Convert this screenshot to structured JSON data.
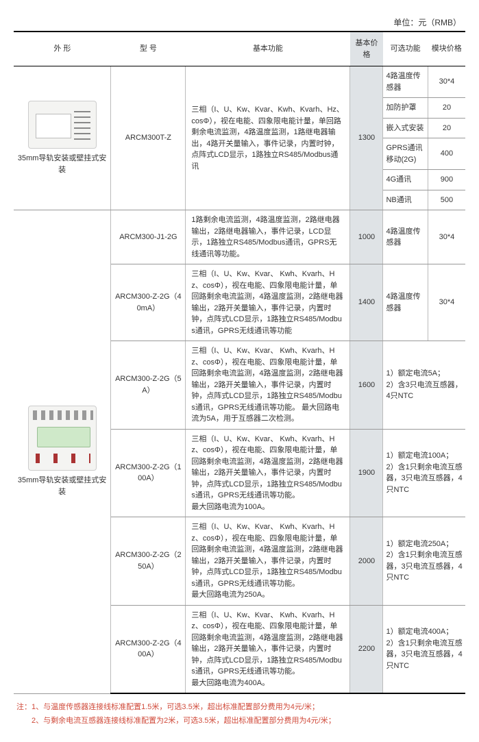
{
  "unit_label": "单位：元（RMB）",
  "headers": {
    "shape": "外  形",
    "model": "型  号",
    "func": "基本功能",
    "price": "基本价格",
    "opt": "可选功能",
    "modprice": "模块价格"
  },
  "group1": {
    "shape_caption": "35mm导轨安装或壁挂式安装",
    "model": "ARCM300T-Z",
    "func": "三相（I、U、Kw、Kvar、Kwh、Kvarh、Hz、cosΦ），视在电能、四象限电能计量，单回路剩余电流监测，4路温度监测，1路继电器输出，4路开关量输入，事件记录，内置时钟，点阵式LCD显示，1路独立RS485/Modbus通讯",
    "price": "1300",
    "options": [
      {
        "name": "4路温度传感器",
        "price": "30*4"
      },
      {
        "name": "加防护罩",
        "price": "20"
      },
      {
        "name": "嵌入式安装",
        "price": "20"
      },
      {
        "name": "GPRS通讯移动(2G)",
        "price": "400"
      },
      {
        "name": "4G通讯",
        "price": "900"
      },
      {
        "name": "NB通讯",
        "price": "500"
      }
    ]
  },
  "group2": {
    "shape_caption": "35mm导轨安装或壁挂式安装",
    "rows": [
      {
        "model": "ARCM300-J1-2G",
        "func": "1路剩余电流监测，4路温度监测，2路继电器输出，2路继电器输入，事件记录，LCD显示，1路独立RS485/Modbus通讯，GPRS无线通讯等功能。",
        "price": "1000",
        "opt": "4路温度传感器",
        "modprice": "30*4"
      },
      {
        "model": "ARCM300-Z-2G（40mA）",
        "func": "三相（I、U、Kw、Kvar、    Kwh、Kvarh、Hz、cosΦ），视在电能、四象限电能计量，单回路剩余电流监测，4路温度监测，2路继电器输出，2路开关量输入，事件记录，内置时钟，点阵式LCD显示，1路独立RS485/Modbus通讯，GPRS无线通讯等功能",
        "price": "1400",
        "opt": "4路温度传感器",
        "modprice": "30*4"
      },
      {
        "model": "ARCM300-Z-2G（5A）",
        "func": "三相（I、U、Kw、Kvar、    Kwh、Kvarh、Hz、cosΦ），视在电能、四象限电能计量，单回路剩余电流监测，4路温度监测，2路继电器输出，2路开关量输入，事件记录，内置时钟，点阵式LCD显示，1路独立RS485/Modbus通讯，GPRS无线通讯等功能。\n最大回路电流为5A，用于互感器二次检测。",
        "price": "1600",
        "opt": "",
        "modprice": "1）额定电流5A；\n2）含3只电流互感器，4只NTC"
      },
      {
        "model": "ARCM300-Z-2G（100A）",
        "func": "三相（I、U、Kw、Kvar、    Kwh、Kvarh、Hz、cosΦ），视在电能、四象限电能计量，单回路剩余电流监测，4路温度监测，2路继电器输出，2路开关量输入，事件记录，内置时钟，点阵式LCD显示，1路独立RS485/Modbus通讯，GPRS无线通讯等功能。\n最大回路电流为100A。",
        "price": "1900",
        "opt": "",
        "modprice": "1）额定电流100A；\n2）含1只剩余电流互感器，3只电流互感器，4只NTC"
      },
      {
        "model": "ARCM300-Z-2G（250A）",
        "func": "三相（I、U、Kw、Kvar、    Kwh、Kvarh、Hz、cosΦ），视在电能、四象限电能计量，单回路剩余电流监测，4路温度监测，2路继电器输出，2路开关量输入，事件记录，内置时钟，点阵式LCD显示，1路独立RS485/Modbus通讯，GPRS无线通讯等功能。\n最大回路电流为250A。",
        "price": "2000",
        "opt": "",
        "modprice": "1）额定电流250A；\n2）含1只剩余电流互感器，3只电流互感器，4只NTC"
      },
      {
        "model": "ARCM300-Z-2G（400A）",
        "func": "三相（I、U、Kw、Kvar、    Kwh、Kvarh、Hz、cosΦ），视在电能、四象限电能计量，单回路剩余电流监测，4路温度监测，2路继电器输出，2路开关量输入，事件记录，内置时钟，点阵式LCD显示，1路独立RS485/Modbus通讯，GPRS无线通讯等功能。\n最大回路电流为400A。",
        "price": "2200",
        "opt": "",
        "modprice": "1）额定电流400A；\n2）含1只剩余电流互感器，3只电流互感器，4只NTC"
      }
    ]
  },
  "footnotes": [
    "注：1、与温度传感器连接线标准配置1.5米，可选3.5米，超出标准配置部分费用为4元/米；",
    "　　2、与剩余电流互感器连接线标准配置为2米，可选3.5米，超出标准配置部分费用为4元/米；"
  ]
}
